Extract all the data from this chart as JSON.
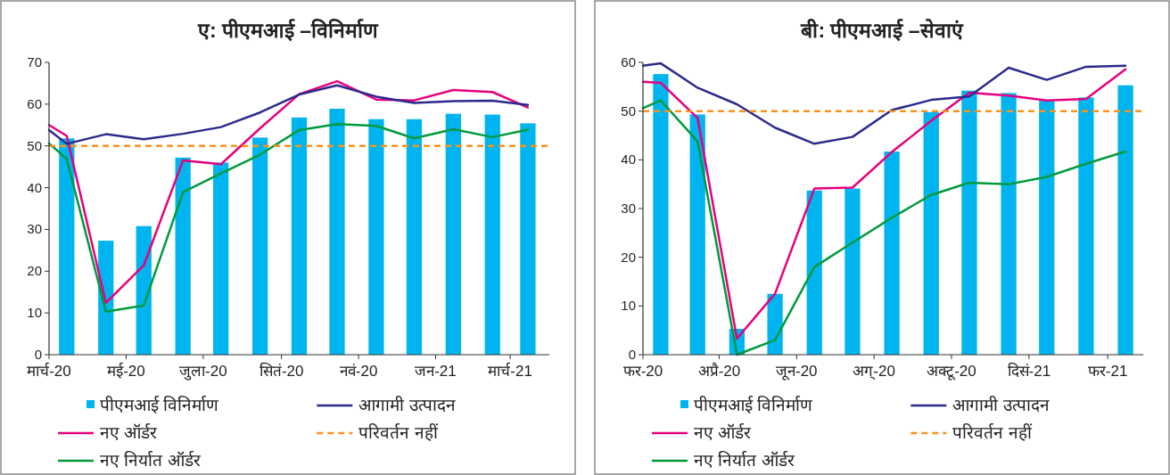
{
  "chart_data": [
    {
      "type": "bar",
      "title": "ए: पीएमआई –विनिर्माण",
      "x": [
        "2020-03-15",
        "2020-04-15",
        "2020-05-15",
        "2020-06-15",
        "2020-07-15",
        "2020-08-15",
        "2020-09-15",
        "2020-10-15",
        "2020-11-15",
        "2020-12-15",
        "2021-01-15",
        "2021-02-15",
        "2021-03-15"
      ],
      "series": [
        {
          "name": "पीएमआई विनिर्माण",
          "color": "#00b5ef",
          "values": [
            51.8,
            27.3,
            30.8,
            47.2,
            46.0,
            52.0,
            56.8,
            58.9,
            56.4,
            56.4,
            57.7,
            57.5,
            55.4
          ]
        },
        {
          "name": "नए ऑर्डर",
          "type": "line",
          "color": "#e6007e",
          "x": [
            "2020-03-01",
            "2020-03-15",
            "2020-04-15",
            "2020-05-15",
            "2020-06-15",
            "2020-07-15",
            "2020-08-15",
            "2020-09-15",
            "2020-10-15",
            "2020-11-15",
            "2020-12-15",
            "2021-01-15",
            "2021-02-15",
            "2021-03-15"
          ],
          "values": [
            55.0,
            52.4,
            12.4,
            21.4,
            46.5,
            45.6,
            54.2,
            62.4,
            65.5,
            61.1,
            60.9,
            63.4,
            62.9,
            59.2
          ]
        },
        {
          "name": "नए निर्यात ऑर्डर",
          "type": "line",
          "color": "#009a3e",
          "x": [
            "2020-03-01",
            "2020-03-15",
            "2020-04-15",
            "2020-05-15",
            "2020-06-15",
            "2020-07-15",
            "2020-08-15",
            "2020-09-15",
            "2020-10-15",
            "2020-11-15",
            "2020-12-15",
            "2021-01-15",
            "2021-02-15",
            "2021-03-15"
          ],
          "values": [
            50.6,
            46.9,
            10.3,
            11.8,
            38.9,
            43.4,
            47.9,
            53.8,
            55.2,
            54.8,
            51.8,
            54.0,
            52.1,
            53.9
          ]
        },
        {
          "name": "आगामी उत्पादन",
          "type": "line",
          "color": "#2b2a8c",
          "x": [
            "2020-03-01",
            "2020-03-15",
            "2020-04-15",
            "2020-05-15",
            "2020-06-15",
            "2020-07-15",
            "2020-08-15",
            "2020-09-15",
            "2020-10-15",
            "2020-11-15",
            "2020-12-15",
            "2021-01-15",
            "2021-02-15",
            "2021-03-15"
          ],
          "values": [
            53.8,
            50.5,
            52.8,
            51.6,
            52.9,
            54.5,
            58.0,
            62.3,
            64.5,
            61.8,
            60.3,
            60.7,
            60.8,
            59.8
          ]
        }
      ],
      "ref_lines": [
        {
          "axis": "y",
          "value": 50,
          "label": "परिवर्तन नहीं",
          "color": "#f7941d",
          "line_style": "dashed"
        }
      ],
      "xlim": [
        "2020-03-01",
        "2021-04-01"
      ],
      "xticks": [
        {
          "value": "2020-03-01",
          "label": "मार्च-20"
        },
        {
          "value": "2020-05-01",
          "label": "मई-20"
        },
        {
          "value": "2020-07-01",
          "label": "जुला-20"
        },
        {
          "value": "2020-09-01",
          "label": "सितं-20"
        },
        {
          "value": "2020-11-01",
          "label": "नवं-20"
        },
        {
          "value": "2021-01-01",
          "label": "जन-21"
        },
        {
          "value": "2021-03-01",
          "label": "मार्च-21"
        }
      ],
      "ylim": [
        0,
        70
      ],
      "yticks": [
        0,
        10,
        20,
        30,
        40,
        50,
        60,
        70
      ],
      "grid": false,
      "legend": "bottom"
    },
    {
      "type": "bar",
      "title": "बी: पीएमआई –सेवाएं",
      "x": [
        "2020-02-15",
        "2020-03-15",
        "2020-04-15",
        "2020-05-15",
        "2020-06-15",
        "2020-07-15",
        "2020-08-15",
        "2020-09-15",
        "2020-10-15",
        "2020-11-15",
        "2020-12-15",
        "2021-01-15",
        "2021-02-15"
      ],
      "series": [
        {
          "name": "पीएमआई विनिर्माण",
          "color": "#00b5ef",
          "values": [
            57.6,
            49.3,
            5.3,
            12.5,
            33.7,
            34.1,
            41.7,
            49.8,
            54.2,
            53.7,
            52.1,
            52.8,
            55.3
          ]
        },
        {
          "name": "नए ऑर्डर",
          "type": "line",
          "color": "#e6007e",
          "x": [
            "2020-02-01",
            "2020-02-15",
            "2020-03-15",
            "2020-04-15",
            "2020-05-15",
            "2020-06-15",
            "2020-07-15",
            "2020-08-15",
            "2020-09-15",
            "2020-10-15",
            "2020-11-15",
            "2020-12-15",
            "2021-01-15",
            "2021-02-15"
          ],
          "values": [
            56.0,
            55.8,
            48.6,
            3.3,
            12.5,
            34.1,
            34.3,
            41.6,
            48.0,
            53.8,
            53.2,
            52.2,
            52.5,
            58.6
          ]
        },
        {
          "name": "नए निर्यात ऑर्डर",
          "type": "line",
          "color": "#009a3e",
          "x": [
            "2020-02-01",
            "2020-02-15",
            "2020-03-15",
            "2020-04-15",
            "2020-05-15",
            "2020-06-15",
            "2020-07-15",
            "2020-08-15",
            "2020-09-15",
            "2020-10-15",
            "2020-11-15",
            "2020-12-15",
            "2021-01-15",
            "2021-02-15"
          ],
          "values": [
            50.6,
            52.2,
            43.8,
            0,
            3.0,
            18.0,
            23.0,
            28.1,
            32.8,
            35.3,
            35.0,
            36.5,
            39.2,
            41.7
          ]
        },
        {
          "name": "आगामी उत्पादन",
          "type": "line",
          "color": "#2b2a8c",
          "x": [
            "2020-02-01",
            "2020-02-15",
            "2020-03-15",
            "2020-04-15",
            "2020-05-15",
            "2020-06-15",
            "2020-07-15",
            "2020-08-15",
            "2020-09-15",
            "2020-10-15",
            "2020-11-15",
            "2020-12-15",
            "2021-01-15",
            "2021-02-15"
          ],
          "values": [
            59.3,
            59.8,
            54.8,
            51.4,
            46.6,
            43.3,
            44.7,
            50.2,
            52.3,
            53.0,
            58.9,
            56.4,
            59.1,
            59.3
          ]
        }
      ],
      "ref_lines": [
        {
          "axis": "y",
          "value": 50,
          "label": "परिवर्तन नहीं",
          "color": "#f7941d",
          "line_style": "dashed"
        }
      ],
      "xlim": [
        "2020-02-01",
        "2021-03-01"
      ],
      "xticks": [
        {
          "value": "2020-02-01",
          "label": "फर-20"
        },
        {
          "value": "2020-04-01",
          "label": "अप्रै-20"
        },
        {
          "value": "2020-06-01",
          "label": "जून-20"
        },
        {
          "value": "2020-08-01",
          "label": "अग्-20"
        },
        {
          "value": "2020-10-01",
          "label": "अक्टू-20"
        },
        {
          "value": "2020-12-01",
          "label": "दिसं-21"
        },
        {
          "value": "2021-02-01",
          "label": "फर-21"
        }
      ],
      "ylim": [
        0,
        60
      ],
      "yticks": [
        0,
        10,
        20,
        30,
        40,
        50,
        60
      ],
      "grid": false,
      "legend": "bottom"
    }
  ]
}
